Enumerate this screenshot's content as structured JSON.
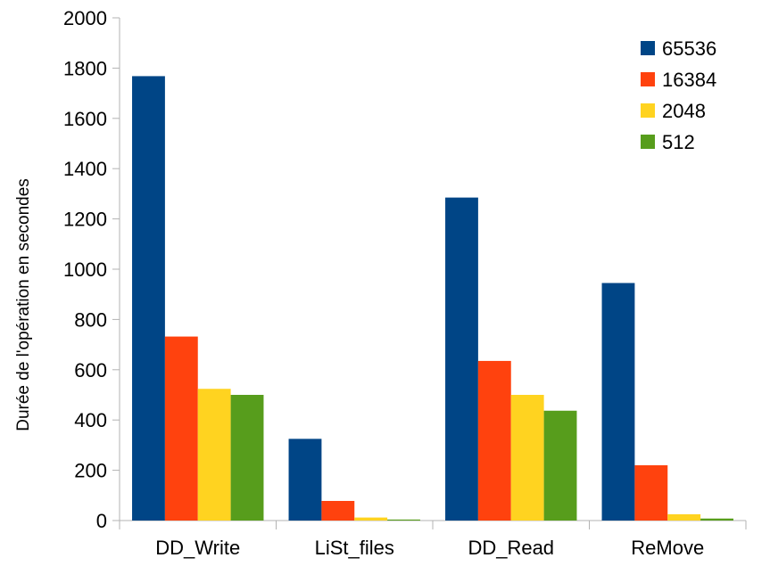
{
  "chart_data": {
    "type": "bar",
    "title": "",
    "xlabel": "",
    "ylabel": "Durée de l'opération en secondes",
    "categories": [
      "DD_Write",
      "LiSt_files",
      "DD_Read",
      "ReMove"
    ],
    "series": [
      {
        "name": "65536",
        "color": "#004586",
        "values": [
          1768,
          325,
          1285,
          945
        ]
      },
      {
        "name": "16384",
        "color": "#ff420e",
        "values": [
          732,
          78,
          635,
          220
        ]
      },
      {
        "name": "2048",
        "color": "#ffd320",
        "values": [
          524,
          12,
          500,
          25
        ]
      },
      {
        "name": "512",
        "color": "#579d1c",
        "values": [
          500,
          4,
          437,
          8
        ]
      }
    ],
    "yticks": [
      0,
      200,
      400,
      600,
      800,
      1000,
      1200,
      1400,
      1600,
      1800,
      2000
    ],
    "ylim": [
      0,
      2000
    ],
    "grid": false,
    "legend_position": "top-right"
  }
}
